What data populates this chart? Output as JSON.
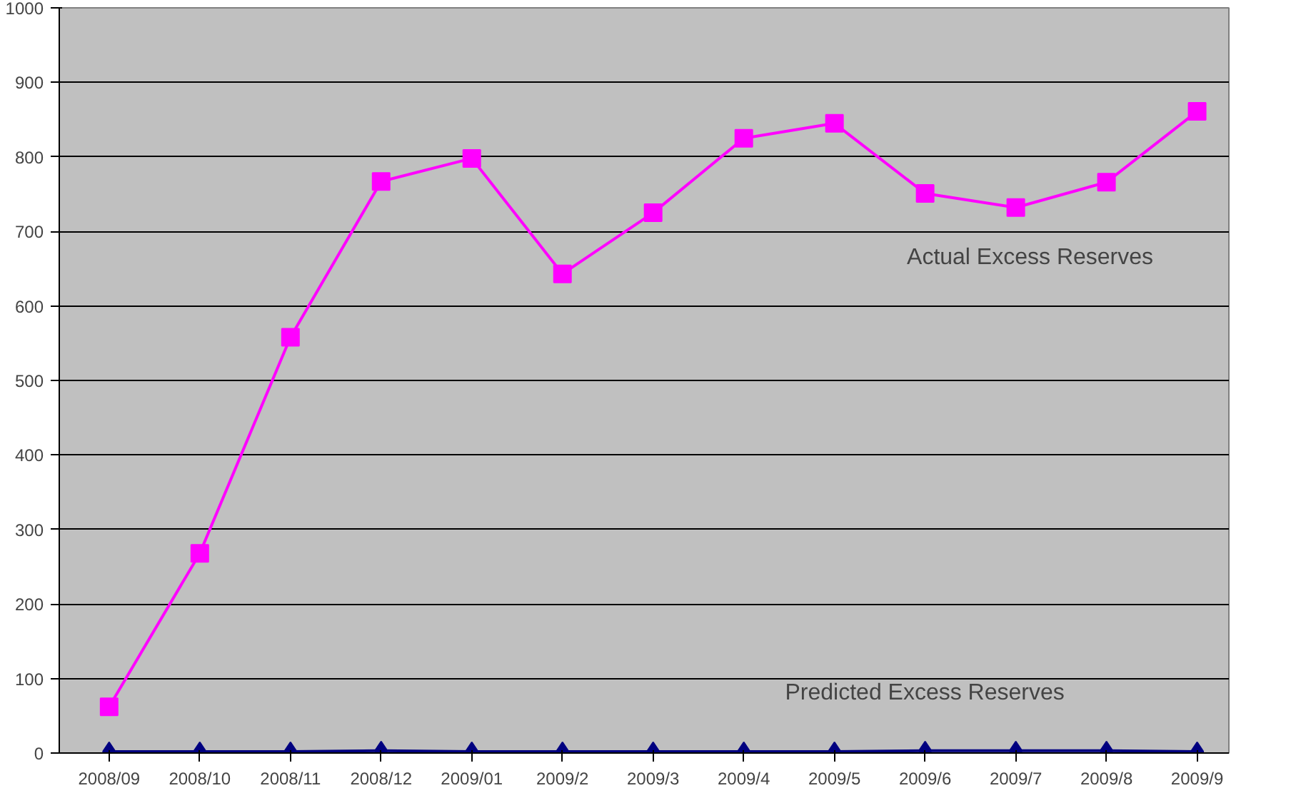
{
  "chart_data": {
    "type": "line",
    "categories": [
      "2008/09",
      "2008/10",
      "2008/11",
      "2008/12",
      "2009/01",
      "2009/2",
      "2009/3",
      "2009/4",
      "2009/5",
      "2009/6",
      "2009/7",
      "2009/8",
      "2009/9"
    ],
    "series": [
      {
        "name": "Actual Excess Reserves",
        "color": "#ff00ff",
        "marker": "square",
        "values": [
          62,
          268,
          558,
          767,
          798,
          643,
          725,
          825,
          845,
          751,
          732,
          766,
          861
        ]
      },
      {
        "name": "Predicted Excess Reserves",
        "color": "#000080",
        "marker": "diamond",
        "values": [
          2,
          2,
          2,
          3,
          2,
          2,
          2,
          2,
          2,
          3,
          3,
          3,
          2
        ]
      }
    ],
    "ylim": [
      0,
      1000
    ],
    "yticks": [
      0,
      100,
      200,
      300,
      400,
      500,
      600,
      700,
      800,
      900,
      1000
    ],
    "grid": "y",
    "line_style": "solid"
  }
}
